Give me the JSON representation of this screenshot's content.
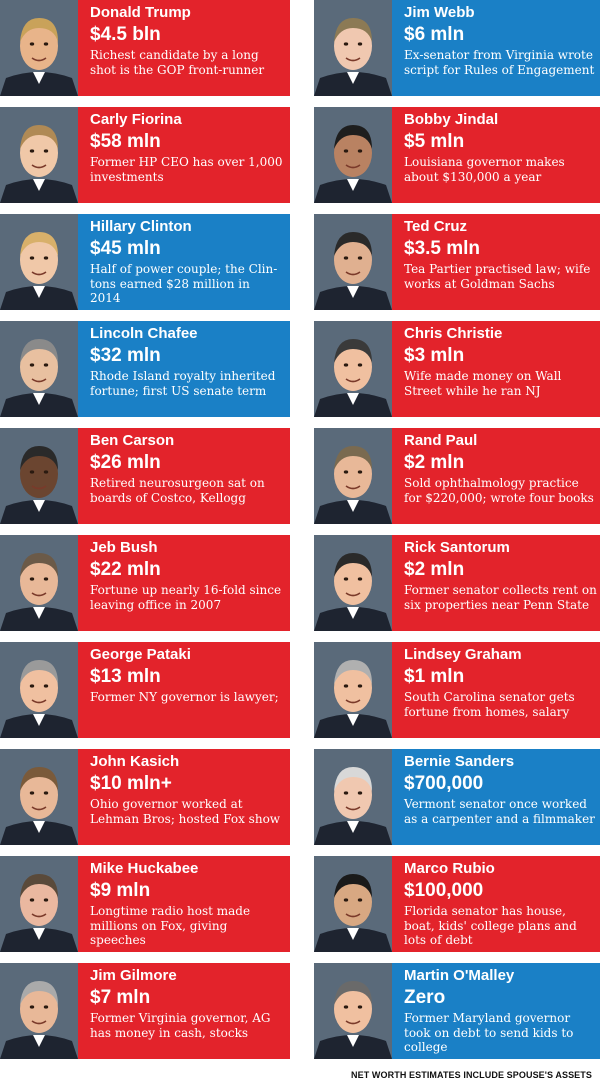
{
  "colors": {
    "red": "#e3232b",
    "blue": "#1a80c6"
  },
  "footnote": "NET WORTH ESTIMATES INCLUDE SPOUSE'S ASSETS",
  "left": [
    {
      "name": "Donald Trump",
      "amount": "$4.5 bln",
      "desc": "Richest candidate by a long shot is the GOP front-runner",
      "party": "red",
      "photo": "portrait-donald-trump"
    },
    {
      "name": "Carly Fiorina",
      "amount": "$58 mln",
      "desc": "Former HP CEO has over 1,000 investments",
      "party": "red",
      "photo": "portrait-carly-fiorina"
    },
    {
      "name": "Hillary Clinton",
      "amount": "$45 mln",
      "desc": "Half of power couple; the Clin-tons earned $28 million in 2014",
      "party": "blue",
      "photo": "portrait-hillary-clinton"
    },
    {
      "name": "Lincoln Chafee",
      "amount": "$32 mln",
      "desc": "Rhode Island royalty inherited fortune; first US senate term",
      "party": "blue",
      "photo": "portrait-lincoln-chafee"
    },
    {
      "name": "Ben Carson",
      "amount": "$26 mln",
      "desc": "Retired neurosurgeon sat on boards of Costco, Kellogg",
      "party": "red",
      "photo": "portrait-ben-carson"
    },
    {
      "name": "Jeb Bush",
      "amount": "$22 mln",
      "desc": "Fortune up nearly 16-fold since leaving office in 2007",
      "party": "red",
      "photo": "portrait-jeb-bush"
    },
    {
      "name": "George Pataki",
      "amount": "$13 mln",
      "desc": "Former NY governor is lawyer;",
      "party": "red",
      "photo": "portrait-george-pataki"
    },
    {
      "name": "John Kasich",
      "amount": "$10 mln+",
      "desc": "Ohio governor worked at Lehman Bros; hosted Fox show",
      "party": "red",
      "photo": "portrait-john-kasich"
    },
    {
      "name": "Mike Huckabee",
      "amount": "$9 mln",
      "desc": "Longtime radio host made millions on Fox, giving speeches",
      "party": "red",
      "photo": "portrait-mike-huckabee"
    },
    {
      "name": "Jim Gilmore",
      "amount": "$7 mln",
      "desc": "Former Virginia governor, AG has money in cash, stocks",
      "party": "red",
      "photo": "portrait-jim-gilmore"
    }
  ],
  "right": [
    {
      "name": "Jim Webb",
      "amount": "$6 mln",
      "desc": "Ex-senator from Virginia wrote script for Rules of Engagement",
      "party": "blue",
      "photo": "portrait-jim-webb"
    },
    {
      "name": "Bobby Jindal",
      "amount": "$5 mln",
      "desc": "Louisiana governor makes about $130,000 a year",
      "party": "red",
      "photo": "portrait-bobby-jindal"
    },
    {
      "name": "Ted Cruz",
      "amount": "$3.5 mln",
      "desc": "Tea Partier practised law; wife works at Goldman Sachs",
      "party": "red",
      "photo": "portrait-ted-cruz"
    },
    {
      "name": "Chris Christie",
      "amount": "$3 mln",
      "desc": "Wife made money on Wall Street while he ran NJ",
      "party": "red",
      "photo": "portrait-chris-christie"
    },
    {
      "name": "Rand Paul",
      "amount": "$2 mln",
      "desc": "Sold ophthalmology practice for $220,000; wrote four books",
      "party": "red",
      "photo": "portrait-rand-paul"
    },
    {
      "name": "Rick Santorum",
      "amount": "$2 mln",
      "desc": "Former senator collects rent on six properties near Penn State",
      "party": "red",
      "photo": "portrait-rick-santorum"
    },
    {
      "name": "Lindsey Graham",
      "amount": "$1 mln",
      "desc": "South Carolina senator gets fortune from homes, salary",
      "party": "red",
      "photo": "portrait-lindsey-graham"
    },
    {
      "name": "Bernie Sanders",
      "amount": "$700,000",
      "desc": "Vermont senator once worked as a carpenter and a filmmaker",
      "party": "blue",
      "photo": "portrait-bernie-sanders"
    },
    {
      "name": "Marco Rubio",
      "amount": "$100,000",
      "desc": "Florida senator has house, boat, kids' college plans and lots of debt",
      "party": "red",
      "photo": "portrait-marco-rubio"
    },
    {
      "name": "Martin O'Malley",
      "amount": "Zero",
      "desc": "Former Maryland governor took on debt to send kids to college",
      "party": "blue",
      "photo": "portrait-martin-omalley"
    }
  ]
}
